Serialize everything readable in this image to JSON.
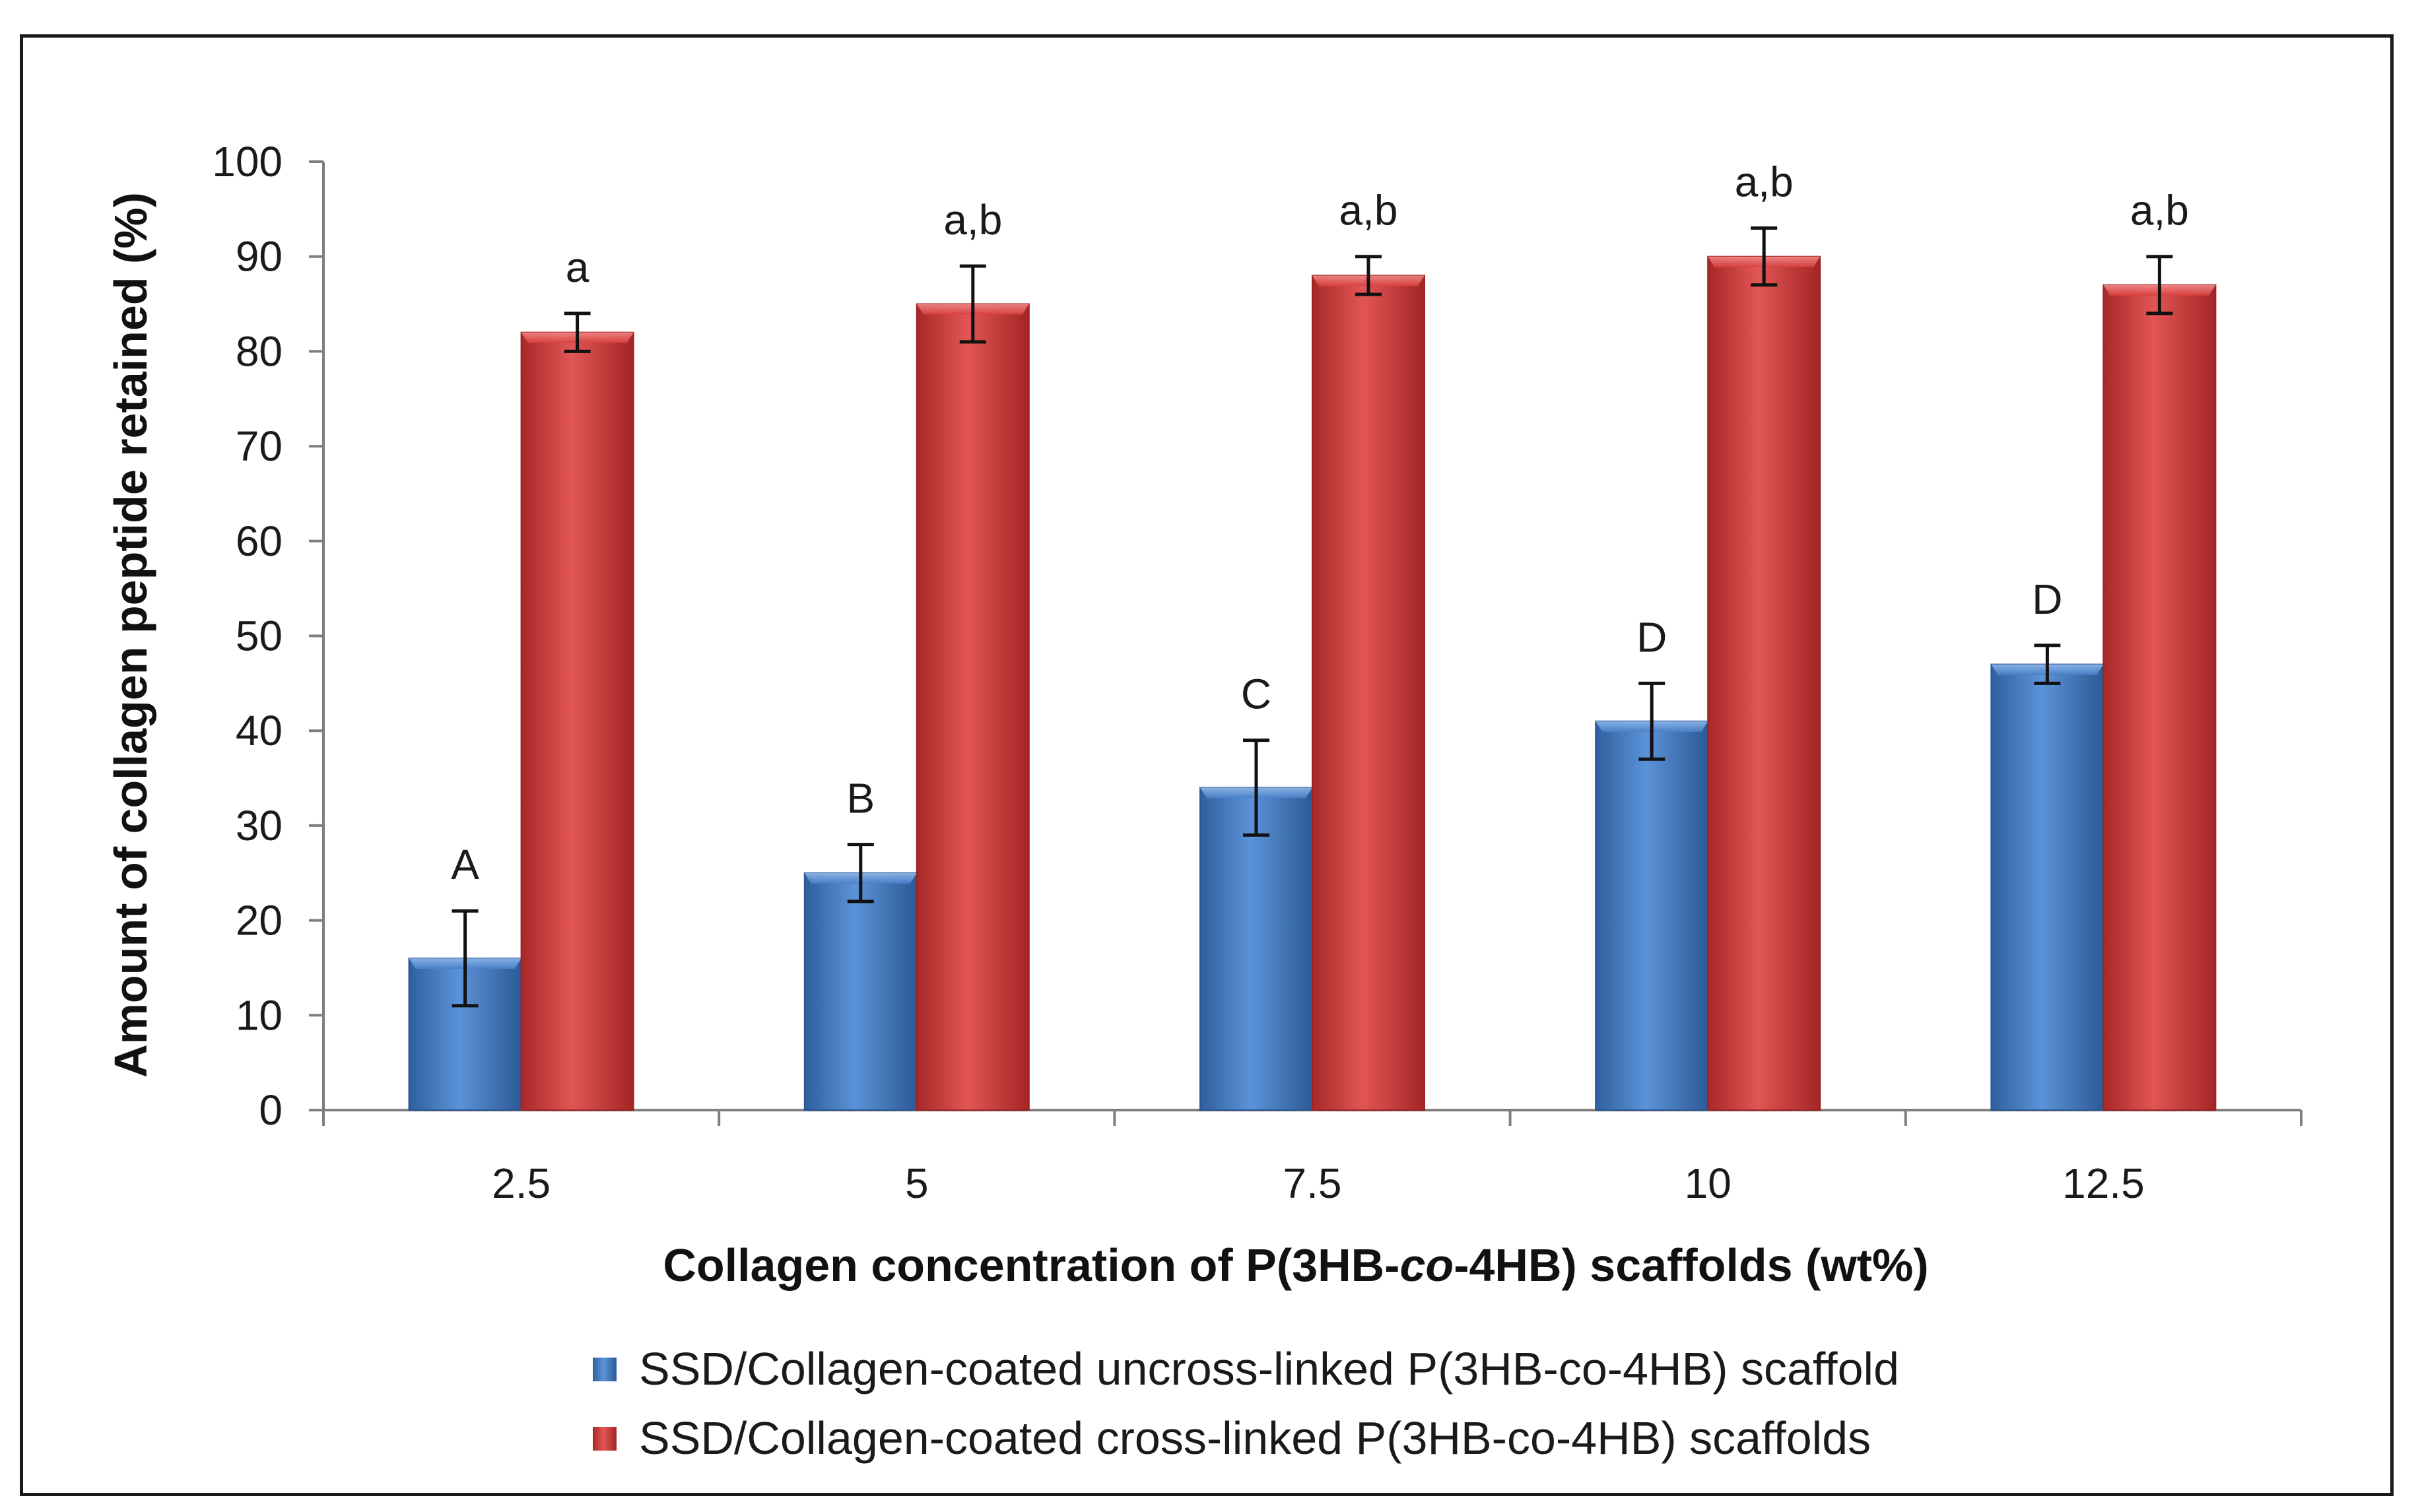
{
  "chart_data": {
    "type": "bar",
    "title": "",
    "xlabel": "Collagen concentration of P(3HB-co-4HB) scaffolds (wt%)",
    "xlabel_parts": {
      "before": "Collagen concentration of P(3HB-",
      "italic": "co",
      "after": "-4HB) scaffolds (wt%)"
    },
    "ylabel": "Amount of collagen peptide retained (%)",
    "ylim": [
      0,
      100
    ],
    "yticks": [
      "0",
      "10",
      "20",
      "30",
      "40",
      "50",
      "60",
      "70",
      "80",
      "90",
      "100"
    ],
    "categories": [
      "2.5",
      "5",
      "7.5",
      "10",
      "12.5"
    ],
    "series": [
      {
        "name": "SSD/Collagen-coated uncross-linked P(3HB-co-4HB) scaffold",
        "color": "#4a7fc8",
        "values": [
          16,
          25,
          34,
          41,
          47
        ],
        "errors": [
          5,
          3,
          5,
          4,
          2
        ],
        "labels": [
          "A",
          "B",
          "C",
          "D",
          "D"
        ]
      },
      {
        "name": "SSD/Collagen-coated cross-linked P(3HB-co-4HB) scaffolds",
        "color": "#d94040",
        "values": [
          82,
          85,
          88,
          90,
          87
        ],
        "errors": [
          2,
          4,
          2,
          3,
          3
        ],
        "labels": [
          "a",
          "a,b",
          "a,b",
          "a,b",
          "a,b"
        ]
      }
    ],
    "grid": false,
    "legend_position": "bottom-center"
  }
}
